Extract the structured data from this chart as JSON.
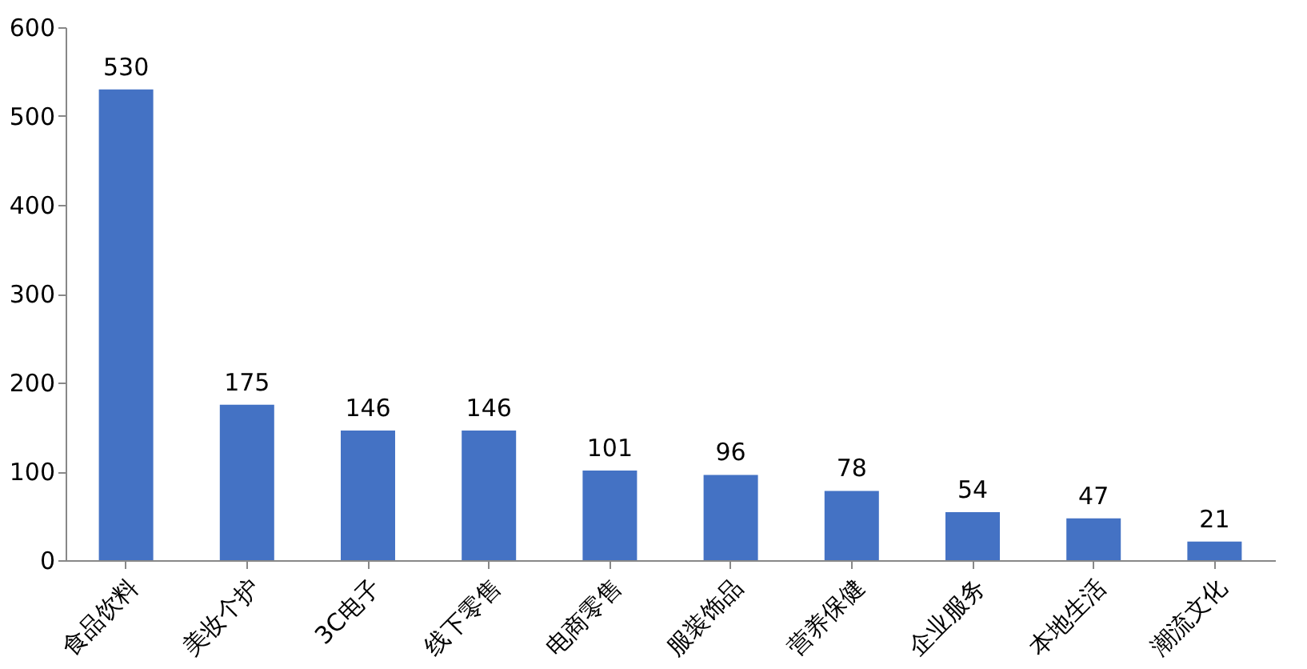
{
  "chart_data": {
    "type": "bar",
    "categories": [
      "食品饮料",
      "美妆个护",
      "3C电子",
      "线下零售",
      "电商零售",
      "服装饰品",
      "营养保健",
      "企业服务",
      "本地生活",
      "潮流文化"
    ],
    "values": [
      530,
      175,
      146,
      146,
      101,
      96,
      78,
      54,
      47,
      21
    ],
    "color": "#4472c4",
    "ylim": [
      0,
      600
    ],
    "yticks": [
      0,
      100,
      200,
      300,
      400,
      500,
      600
    ],
    "grid": false,
    "data_labels": true
  }
}
